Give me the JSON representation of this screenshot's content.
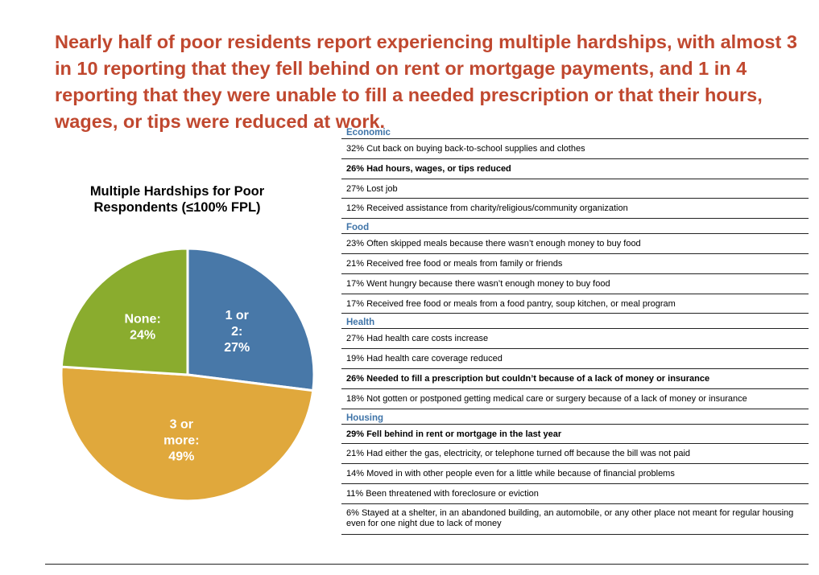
{
  "headline": "Nearly half of poor residents report experiencing multiple hardships, with almost 3 in 10 reporting that they fell behind on rent or mortgage payments, and 1 in 4 reporting that they were unable to fill a needed prescription or that their hours, wages, or tips were reduced at work.",
  "chart_data": {
    "type": "pie",
    "title": "Multiple Hardships for Poor Respondents (≤100% FPL)",
    "slices": [
      {
        "label": "1 or 2:",
        "value_label": "27%",
        "value": 27,
        "color": "#4878a8"
      },
      {
        "label": "3 or more:",
        "value_label": "49%",
        "value": 49,
        "color": "#e0a83c"
      },
      {
        "label": "None:",
        "value_label": "24%",
        "value": 24,
        "color": "#8aac2e"
      }
    ]
  },
  "hardships": [
    {
      "category": "Economic",
      "items": [
        {
          "text": "32% Cut back on buying back-to-school supplies and clothes",
          "bold": false
        },
        {
          "text": "26% Had hours, wages, or tips reduced",
          "bold": true
        },
        {
          "text": "27% Lost job",
          "bold": false
        },
        {
          "text": "12% Received assistance from charity/religious/community organization",
          "bold": false
        }
      ]
    },
    {
      "category": "Food",
      "items": [
        {
          "text": "23% Often skipped meals because there wasn’t enough money to buy food",
          "bold": false
        },
        {
          "text": "21% Received free food or meals from family or friends",
          "bold": false
        },
        {
          "text": "17% Went hungry because there wasn’t enough money to buy food",
          "bold": false
        },
        {
          "text": "17% Received free food or meals from a food pantry, soup kitchen, or meal program",
          "bold": false
        }
      ]
    },
    {
      "category": "Health",
      "items": [
        {
          "text": "27% Had health care costs increase",
          "bold": false
        },
        {
          "text": "19% Had health care coverage reduced",
          "bold": false
        },
        {
          "text": "26% Needed to fill a prescription but couldn’t because of a lack of money or insurance",
          "bold": true
        },
        {
          "text": "18% Not gotten or postponed getting medical care or surgery because of a lack of money or insurance",
          "bold": false
        }
      ]
    },
    {
      "category": "Housing",
      "items": [
        {
          "text": "29% Fell behind in rent or mortgage in the last year",
          "bold": true
        },
        {
          "text": "21% Had either the gas, electricity, or telephone turned off because the bill was not paid",
          "bold": false
        },
        {
          "text": "14% Moved in with other people even for a little while because of financial problems",
          "bold": false
        },
        {
          "text": "11% Been threatened with foreclosure or eviction",
          "bold": false
        },
        {
          "text": "6% Stayed at a shelter, in an abandoned building, an automobile, or any other place not meant for regular housing even for one night due to lack of money",
          "bold": false
        }
      ]
    }
  ]
}
